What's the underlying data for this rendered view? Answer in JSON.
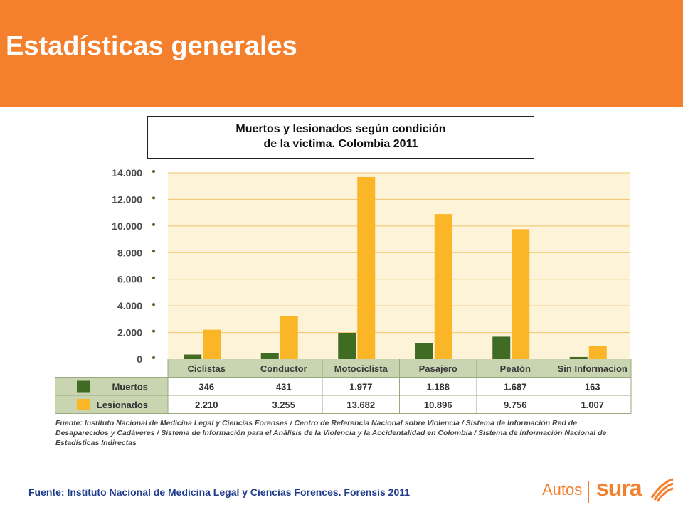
{
  "page": {
    "title": "Estadísticas generales"
  },
  "chart_box": {
    "title_line1": "Muertos y lesionados según condición",
    "title_line2": "de la victima. Colombia 2011"
  },
  "chart_data": {
    "type": "bar",
    "categories": [
      "Ciclistas",
      "Conductor",
      "Motociclista",
      "Pasajero",
      "Peatòn",
      "Sin Informacion"
    ],
    "series": [
      {
        "name": "Muertos",
        "values": [
          346,
          431,
          1977,
          1188,
          1687,
          163
        ],
        "labels": [
          "346",
          "431",
          "1.977",
          "1.188",
          "1.687",
          "163"
        ],
        "color": "#3f6b22"
      },
      {
        "name": "Lesionados",
        "values": [
          2210,
          3255,
          13682,
          10896,
          9756,
          1007
        ],
        "labels": [
          "2.210",
          "3.255",
          "13.682",
          "10.896",
          "9.756",
          "1.007"
        ],
        "color": "#fbb627"
      }
    ],
    "y_ticks": [
      0,
      2000,
      4000,
      6000,
      8000,
      10000,
      12000,
      14000
    ],
    "y_tick_labels": [
      "0",
      "2.000",
      "4.000",
      "6.000",
      "8.000",
      "10.000",
      "12.000",
      "14.000"
    ],
    "ylim": [
      0,
      14000
    ],
    "grid": true,
    "legend": "table-below",
    "background": "#fdf3d9",
    "source": "Fuente: Instituto Nacional de Medicina Legal y Ciencias Forenses / Centro de Referencia Nacional sobre Violencia / Sistema de Información Red de Desaparecidos y Cadáveres / Sistema de Información para el Análisis de la Violencia y la Accidentalidad en Colombia / Sistema de Información Nacional de Estadísticas Indirectas"
  },
  "footer": {
    "source": "Fuente: Instituto Nacional de Medicina Legal y Ciencias Forences. Forensis 2011",
    "brand_autos": "Autos",
    "brand_sura": "sura"
  }
}
